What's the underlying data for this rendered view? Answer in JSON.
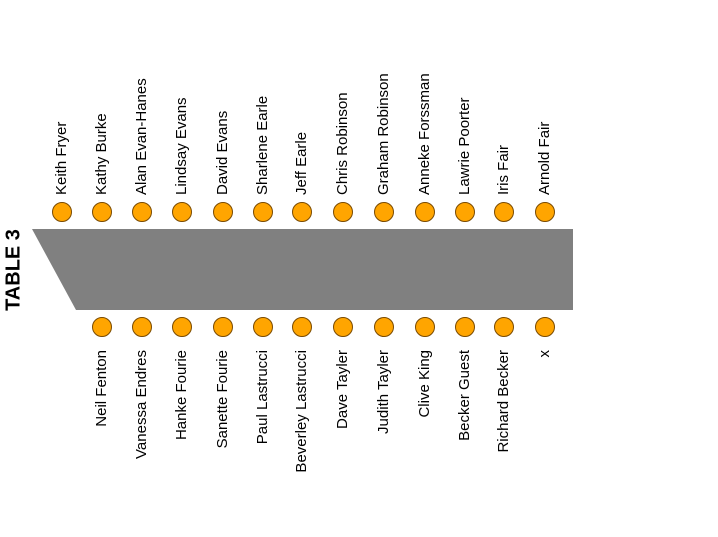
{
  "title": "TABLE 3",
  "top_seats": [
    "Keith Fryer",
    "Kathy Burke",
    "Alan Evan-Hanes",
    "Lindsay Evans",
    "David Evans",
    "Sharlene Earle",
    "Jeff Earle",
    "Chris Robinson",
    "Graham Robinson",
    "Anneke Forssman",
    "Lawrie Poorter",
    "Iris Fair",
    "Arnold Fair"
  ],
  "bottom_seats": [
    "Neil Fenton",
    "Vanessa Endres",
    "Hanke Fourie",
    "Sanette Fourie",
    "Paul Lastrucci",
    "Beverley Lastrucci",
    "Dave Tayler",
    "Judith Tayler",
    "Clive King",
    "Becker Guest",
    "Richard Becker",
    "x"
  ]
}
